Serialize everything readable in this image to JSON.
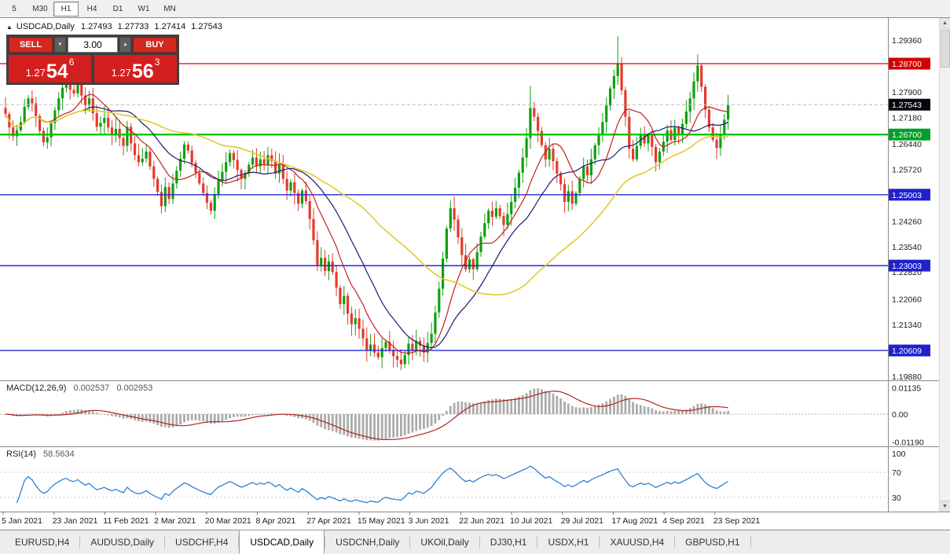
{
  "icons": {
    "collapse": "▲",
    "up_arrow": "▲",
    "down_arrow": "▼"
  },
  "timeframes": [
    {
      "label": "5"
    },
    {
      "label": "M30"
    },
    {
      "label": "H1",
      "active": true
    },
    {
      "label": "H4"
    },
    {
      "label": "D1"
    },
    {
      "label": "W1"
    },
    {
      "label": "MN"
    }
  ],
  "chart_header": {
    "symbol": "USDCAD,Daily",
    "open": "1.27493",
    "high": "1.27733",
    "low": "1.27414",
    "close": "1.27543"
  },
  "trade_panel": {
    "sell_label": "SELL",
    "buy_label": "BUY",
    "volume": "3.00",
    "sell_price_prefix": "1.27",
    "sell_price_big": "54",
    "sell_price_sup": "6",
    "buy_price_prefix": "1.27",
    "buy_price_big": "56",
    "buy_price_sup": "3"
  },
  "macd": {
    "title": "MACD(12,26,9)",
    "main_value": "0.002537",
    "signal_value": "0.002953",
    "axis_labels": [
      "0.01135",
      "0.00",
      "-0.01190"
    ]
  },
  "rsi": {
    "title": "RSI(14)",
    "value": "58.5634",
    "axis_labels": [
      "100",
      "70",
      "30"
    ],
    "levels": [
      70,
      30
    ]
  },
  "tabs": [
    {
      "label": "EURUSD,H4"
    },
    {
      "label": "AUDUSD,Daily"
    },
    {
      "label": "USDCHF,H4"
    },
    {
      "label": "USDCAD,Daily",
      "active": true
    },
    {
      "label": "USDCNH,Daily"
    },
    {
      "label": "UKOil,Daily"
    },
    {
      "label": "DJ30,H1"
    },
    {
      "label": "USDX,H1"
    },
    {
      "label": "XAUUSD,H4"
    },
    {
      "label": "GBPUSD,H1"
    }
  ],
  "chart_data": {
    "type": "candlestick",
    "symbol": "USDCAD",
    "timeframe": "Daily",
    "current_price": 1.27543,
    "first_open": 1.2745,
    "closes": [
      1.2728,
      1.269,
      1.2665,
      1.2682,
      1.2705,
      1.2748,
      1.2772,
      1.2758,
      1.2722,
      1.268,
      1.2648,
      1.2662,
      1.2702,
      1.2738,
      1.2772,
      1.2802,
      1.2822,
      1.2796,
      1.2786,
      1.2812,
      1.278,
      1.2752,
      1.2772,
      1.273,
      1.2692,
      1.2703,
      1.2717,
      1.269,
      1.2672,
      1.2686,
      1.266,
      1.2638,
      1.2692,
      1.2645,
      1.2612,
      1.2592,
      1.2602,
      1.2622,
      1.258,
      1.2545,
      1.2508,
      1.2468,
      1.2522,
      1.2488,
      1.2532,
      1.2568,
      1.2602,
      1.2642,
      1.2625,
      1.259,
      1.2562,
      1.2532,
      1.2505,
      1.2478,
      1.2455,
      1.2502,
      1.2542,
      1.2565,
      1.2592,
      1.2618,
      1.2598,
      1.257,
      1.2545,
      1.2562,
      1.2585,
      1.2605,
      1.258,
      1.26,
      1.2585,
      1.2612,
      1.2595,
      1.256,
      1.2585,
      1.2545,
      1.2512,
      1.2535,
      1.2505,
      1.2475,
      1.2512,
      1.2482,
      1.2432,
      1.2372,
      1.2302,
      1.2322,
      1.2285,
      1.2312,
      1.2282,
      1.2238,
      1.2192,
      1.2215,
      1.2165,
      1.2135,
      1.2152,
      1.2122,
      1.2095,
      1.2062,
      1.2078,
      1.2055,
      1.2042,
      1.2068,
      1.2085,
      1.206,
      1.2045,
      1.2035,
      1.2022,
      1.2048,
      1.208,
      1.2062,
      1.2088,
      1.2075,
      1.2055,
      1.2082,
      1.2108,
      1.2168,
      1.2235,
      1.232,
      1.2405,
      1.2462,
      1.243,
      1.238,
      1.233,
      1.229,
      1.2318,
      1.229,
      1.2338,
      1.2382,
      1.242,
      1.2455,
      1.2438,
      1.2462,
      1.244,
      1.2415,
      1.2445,
      1.248,
      1.252,
      1.2562,
      1.2605,
      1.266,
      1.2745,
      1.272,
      1.268,
      1.264,
      1.26,
      1.263,
      1.2595,
      1.256,
      1.253,
      1.248,
      1.251,
      1.2475,
      1.2505,
      1.2545,
      1.258,
      1.2555,
      1.26,
      1.264,
      1.2672,
      1.2705,
      1.2752,
      1.28,
      1.2835,
      1.287,
      1.2795,
      1.272,
      1.263,
      1.26,
      1.2638,
      1.267,
      1.2645,
      1.2668,
      1.2635,
      1.2592,
      1.2622,
      1.265,
      1.2682,
      1.2655,
      1.269,
      1.2668,
      1.27,
      1.2735,
      1.2772,
      1.282,
      1.2865,
      1.2805,
      1.274,
      1.269,
      1.2655,
      1.2632,
      1.2668,
      1.2712,
      1.2754
    ],
    "wick_overrides": {
      "41": {
        "low": 1.2448
      },
      "104": {
        "low": 1.2005
      },
      "138": {
        "high": 1.2807
      },
      "161": {
        "high": 1.2947
      },
      "182": {
        "high": 1.2896
      }
    },
    "colors": {
      "up": "#0fa00f",
      "down": "#e23b2e",
      "macd_hist": "#ababab",
      "macd_signal": "#b22222",
      "rsi_line": "#2277cc"
    },
    "overlays": [
      {
        "name": "SMA fast",
        "period": 10,
        "color": "#c22121",
        "width": 1.2
      },
      {
        "name": "SMA medium",
        "period": 20,
        "color": "#1b1b74",
        "width": 1.2
      },
      {
        "name": "SMA slow",
        "period": 50,
        "color": "#e2ca2e",
        "width": 1.6
      }
    ],
    "hlines": [
      {
        "price": 1.287,
        "color": "#e00000",
        "width": 1.2
      },
      {
        "price": 1.267,
        "color": "#00c000",
        "width": 2.2
      },
      {
        "price": 1.25003,
        "color": "#2626d8",
        "width": 1.4
      },
      {
        "price": 1.23003,
        "color": "#2626d8",
        "width": 1.4
      },
      {
        "price": 1.20609,
        "color": "#2626d8",
        "width": 1.4
      }
    ],
    "y_axis": {
      "labels": [
        "1.29360",
        "1.27900",
        "1.27180",
        "1.26440",
        "1.25720",
        "1.24260",
        "1.23540",
        "1.22820",
        "1.22060",
        "1.21340",
        "1.19880"
      ],
      "badges": [
        {
          "value": "1.28700",
          "color": "#d40000"
        },
        {
          "value": "1.27543",
          "color": "#06060e"
        },
        {
          "value": "1.26700",
          "color": "#00a028"
        },
        {
          "value": "1.25003",
          "color": "#2020cc"
        },
        {
          "value": "1.23003",
          "color": "#2020cc"
        },
        {
          "value": "1.20609",
          "color": "#2020cc"
        }
      ]
    },
    "x_axis": {
      "labels": [
        "5 Jan 2021",
        "23 Jan 2021",
        "11 Feb 2021",
        "2 Mar 2021",
        "20 Mar 2021",
        "8 Apr 2021",
        "27 Apr 2021",
        "15 May 2021",
        "3 Jun 2021",
        "22 Jun 2021",
        "10 Jul 2021",
        "29 Jul 2021",
        "17 Aug 2021",
        "4 Sep 2021",
        "23 Sep 2021"
      ]
    }
  }
}
